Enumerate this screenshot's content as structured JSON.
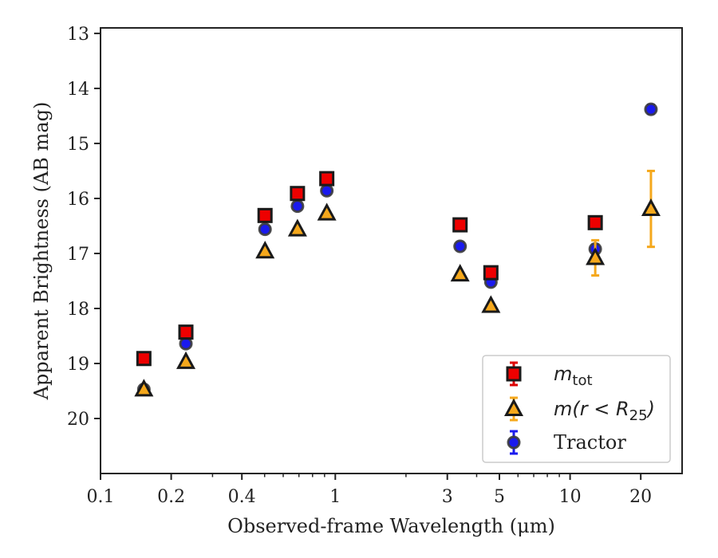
{
  "chart_data": {
    "type": "scatter",
    "xlabel": "Observed-frame Wavelength (μm)",
    "ylabel": "Apparent Brightness (AB mag)",
    "xscale": "log",
    "xlim": [
      0.1,
      30
    ],
    "ylim": [
      21.0,
      12.9
    ],
    "y_inverted": true,
    "grid": false,
    "legend_position": "lower-right",
    "x_ticks": [
      {
        "value": 0.1,
        "label": "0.1"
      },
      {
        "value": 0.2,
        "label": "0.2"
      },
      {
        "value": 0.4,
        "label": "0.4"
      },
      {
        "value": 1,
        "label": "1"
      },
      {
        "value": 3,
        "label": "3"
      },
      {
        "value": 5,
        "label": "5"
      },
      {
        "value": 10,
        "label": "10"
      },
      {
        "value": 20,
        "label": "20"
      }
    ],
    "y_ticks": [
      {
        "value": 13,
        "label": "13"
      },
      {
        "value": 14,
        "label": "14"
      },
      {
        "value": 15,
        "label": "15"
      },
      {
        "value": 16,
        "label": "16"
      },
      {
        "value": 17,
        "label": "17"
      },
      {
        "value": 18,
        "label": "18"
      },
      {
        "value": 19,
        "label": "19"
      },
      {
        "value": 20,
        "label": "20"
      }
    ],
    "series": [
      {
        "name": "m_tot",
        "legend_main": "m",
        "legend_sub": "tot",
        "marker": "square",
        "color": "#ee0000",
        "errcolor": "#dd0000",
        "points": [
          {
            "x": 0.153,
            "y": 18.91,
            "err": 0.0
          },
          {
            "x": 0.231,
            "y": 18.43,
            "err": 0.0
          },
          {
            "x": 0.502,
            "y": 16.31,
            "err": 0.0
          },
          {
            "x": 0.69,
            "y": 15.91,
            "err": 0.0
          },
          {
            "x": 0.92,
            "y": 15.64,
            "err": 0.0
          },
          {
            "x": 3.4,
            "y": 16.48,
            "err": 0.0
          },
          {
            "x": 4.6,
            "y": 17.35,
            "err": 0.0
          },
          {
            "x": 12.8,
            "y": 16.44,
            "err": 0.0
          }
        ]
      },
      {
        "name": "m(r < R_25)",
        "legend_main": "m(r < R",
        "legend_sub": "25",
        "legend_tail": ")",
        "marker": "triangle",
        "color": "#f5a81c",
        "errcolor": "#f5a81c",
        "points": [
          {
            "x": 0.153,
            "y": 19.47,
            "err": 0.0
          },
          {
            "x": 0.231,
            "y": 18.97,
            "err": 0.0
          },
          {
            "x": 0.502,
            "y": 16.96,
            "err": 0.0
          },
          {
            "x": 0.69,
            "y": 16.56,
            "err": 0.0
          },
          {
            "x": 0.92,
            "y": 16.27,
            "err": 0.0
          },
          {
            "x": 3.4,
            "y": 17.38,
            "err": 0.0
          },
          {
            "x": 4.6,
            "y": 17.95,
            "err": 0.0
          },
          {
            "x": 12.8,
            "y": 17.08,
            "err": 0.32
          },
          {
            "x": 22.1,
            "y": 16.19,
            "err": 0.69
          }
        ]
      },
      {
        "name": "Tractor",
        "legend_main": "Tractor",
        "marker": "circle",
        "color": "#1a1aee",
        "errcolor": "#1a1aee",
        "points": [
          {
            "x": 0.153,
            "y": 19.47,
            "err": 0.06
          },
          {
            "x": 0.231,
            "y": 18.64,
            "err": 0.06
          },
          {
            "x": 0.502,
            "y": 16.56,
            "err": 0.06
          },
          {
            "x": 0.69,
            "y": 16.14,
            "err": 0.06
          },
          {
            "x": 0.92,
            "y": 15.86,
            "err": 0.06
          },
          {
            "x": 3.4,
            "y": 16.87,
            "err": 0.07
          },
          {
            "x": 4.6,
            "y": 17.52,
            "err": 0.07
          },
          {
            "x": 12.8,
            "y": 16.92,
            "err": 0.08
          },
          {
            "x": 22.1,
            "y": 14.38,
            "err": 0.08
          }
        ]
      }
    ]
  }
}
